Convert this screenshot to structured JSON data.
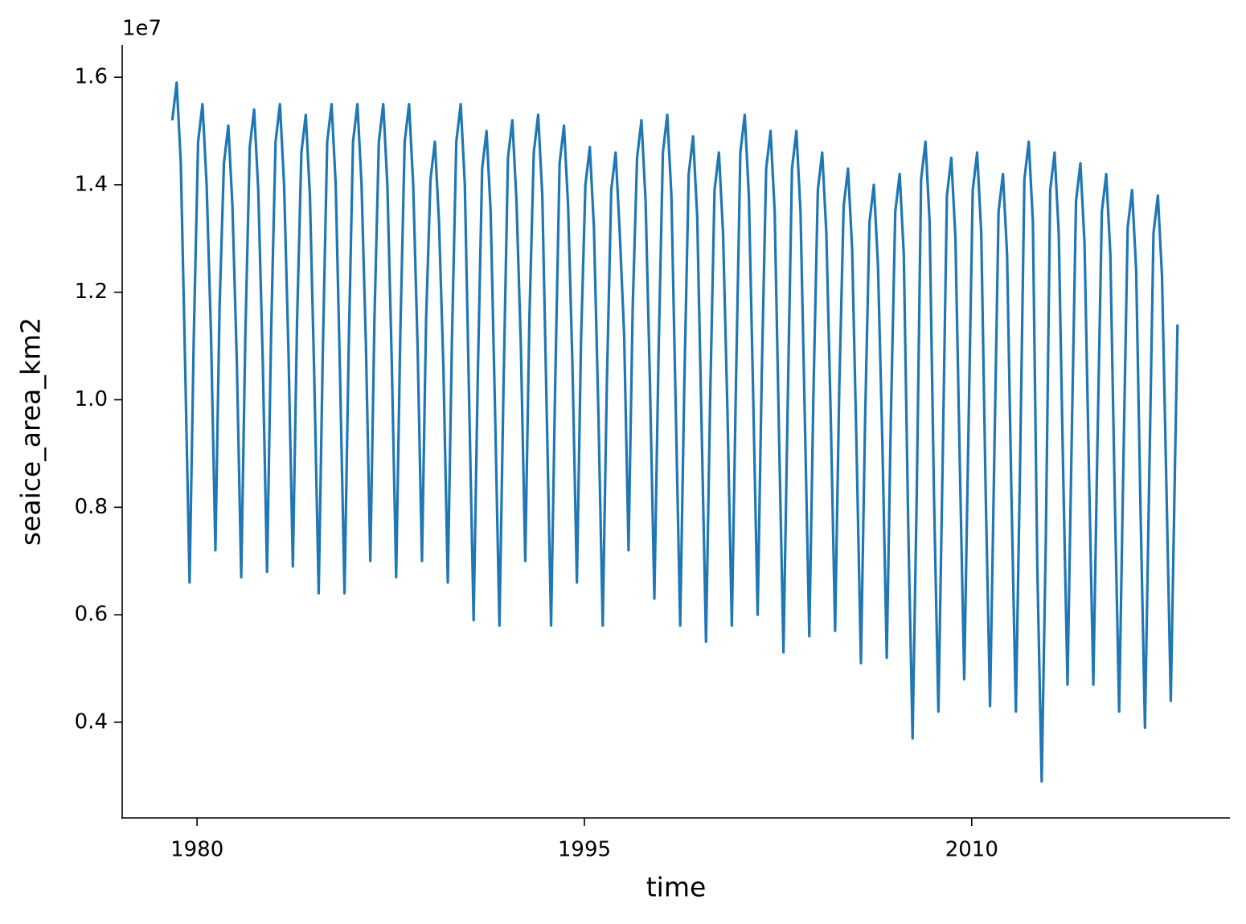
{
  "chart_data": {
    "type": "line",
    "x_label": "time",
    "y_label": "seaice_area_km2",
    "y_offset_label": "1e7",
    "color": "#1f77b4",
    "x": [
      1979.04,
      1979.21,
      1979.37,
      1979.54,
      1979.71,
      1979.87,
      1980.04,
      1980.21,
      1980.37,
      1980.54,
      1980.71,
      1980.87,
      1981.04,
      1981.21,
      1981.37,
      1981.54,
      1981.71,
      1981.87,
      1982.04,
      1982.21,
      1982.37,
      1982.54,
      1982.71,
      1982.87,
      1983.04,
      1983.21,
      1983.37,
      1983.54,
      1983.71,
      1983.87,
      1984.04,
      1984.21,
      1984.37,
      1984.54,
      1984.71,
      1984.87,
      1985.04,
      1985.21,
      1985.37,
      1985.54,
      1985.71,
      1985.87,
      1986.04,
      1986.21,
      1986.37,
      1986.54,
      1986.71,
      1986.87,
      1987.04,
      1987.21,
      1987.37,
      1987.54,
      1987.71,
      1987.87,
      1988.04,
      1988.21,
      1988.37,
      1988.54,
      1988.71,
      1988.87,
      1989.04,
      1989.21,
      1989.37,
      1989.54,
      1989.71,
      1989.87,
      1990.04,
      1990.21,
      1990.37,
      1990.54,
      1990.71,
      1990.87,
      1991.04,
      1991.21,
      1991.37,
      1991.54,
      1991.71,
      1991.87,
      1992.04,
      1992.21,
      1992.37,
      1992.54,
      1992.71,
      1992.87,
      1993.04,
      1993.21,
      1993.37,
      1993.54,
      1993.71,
      1993.87,
      1994.04,
      1994.21,
      1994.37,
      1994.54,
      1994.71,
      1994.87,
      1995.04,
      1995.21,
      1995.37,
      1995.54,
      1995.71,
      1995.87,
      1996.04,
      1996.21,
      1996.37,
      1996.54,
      1996.71,
      1996.87,
      1997.04,
      1997.21,
      1997.37,
      1997.54,
      1997.71,
      1997.87,
      1998.04,
      1998.21,
      1998.37,
      1998.54,
      1998.71,
      1998.87,
      1999.04,
      1999.21,
      1999.37,
      1999.54,
      1999.71,
      1999.87,
      2000.04,
      2000.21,
      2000.37,
      2000.54,
      2000.71,
      2000.87,
      2001.04,
      2001.21,
      2001.37,
      2001.54,
      2001.71,
      2001.87,
      2002.04,
      2002.21,
      2002.37,
      2002.54,
      2002.71,
      2002.87,
      2003.04,
      2003.21,
      2003.37,
      2003.54,
      2003.71,
      2003.87,
      2004.04,
      2004.21,
      2004.37,
      2004.54,
      2004.71,
      2004.87,
      2005.04,
      2005.21,
      2005.37,
      2005.54,
      2005.71,
      2005.87,
      2006.04,
      2006.21,
      2006.37,
      2006.54,
      2006.71,
      2006.87,
      2007.04,
      2007.21,
      2007.37,
      2007.54,
      2007.71,
      2007.87,
      2008.04,
      2008.21,
      2008.37,
      2008.54,
      2008.71,
      2008.87,
      2009.04,
      2009.21,
      2009.37,
      2009.54,
      2009.71,
      2009.87,
      2010.04,
      2010.21,
      2010.37,
      2010.54,
      2010.71,
      2010.87,
      2011.04,
      2011.21,
      2011.37,
      2011.54,
      2011.71,
      2011.87,
      2012.04,
      2012.21,
      2012.37,
      2012.54,
      2012.71,
      2012.87,
      2013.04,
      2013.21,
      2013.37,
      2013.54,
      2013.71,
      2013.87,
      2014.04,
      2014.21,
      2014.37,
      2014.54,
      2014.71,
      2014.87,
      2015.04,
      2015.21,
      2015.37,
      2015.54,
      2015.71,
      2015.87,
      2016.04,
      2016.21,
      2016.37,
      2016.54,
      2016.71,
      2016.87,
      2017.04,
      2017.21,
      2017.37,
      2017.54,
      2017.71,
      2017.97
    ],
    "values": [
      1.52,
      1.59,
      1.44,
      1.06,
      0.66,
      1.11,
      1.48,
      1.55,
      1.4,
      1.12,
      0.72,
      1.17,
      1.44,
      1.51,
      1.36,
      1.07,
      0.67,
      1.12,
      1.47,
      1.54,
      1.39,
      1.08,
      0.68,
      1.13,
      1.48,
      1.55,
      1.4,
      1.09,
      0.69,
      1.14,
      1.46,
      1.53,
      1.38,
      1.04,
      0.64,
      1.09,
      1.48,
      1.55,
      1.4,
      1.04,
      0.64,
      1.09,
      1.48,
      1.55,
      1.4,
      1.1,
      0.7,
      1.15,
      1.48,
      1.55,
      1.4,
      1.07,
      0.67,
      1.12,
      1.48,
      1.55,
      1.4,
      1.1,
      0.7,
      1.15,
      1.41,
      1.48,
      1.33,
      1.06,
      0.66,
      1.11,
      1.48,
      1.55,
      1.4,
      0.99,
      0.59,
      1.04,
      1.43,
      1.5,
      1.35,
      0.98,
      0.58,
      1.03,
      1.45,
      1.52,
      1.37,
      1.1,
      0.7,
      1.15,
      1.46,
      1.53,
      1.38,
      0.98,
      0.58,
      1.03,
      1.44,
      1.51,
      1.36,
      1.06,
      0.66,
      1.11,
      1.4,
      1.47,
      1.32,
      0.98,
      0.58,
      1.03,
      1.39,
      1.46,
      1.31,
      1.12,
      0.72,
      1.17,
      1.45,
      1.52,
      1.37,
      1.03,
      0.63,
      1.08,
      1.46,
      1.53,
      1.38,
      0.98,
      0.58,
      1.03,
      1.42,
      1.49,
      1.34,
      0.95,
      0.55,
      1.0,
      1.39,
      1.46,
      1.31,
      0.98,
      0.58,
      1.03,
      1.46,
      1.53,
      1.38,
      1.0,
      0.6,
      1.05,
      1.43,
      1.5,
      1.35,
      0.93,
      0.53,
      0.98,
      1.43,
      1.5,
      1.35,
      0.96,
      0.56,
      1.01,
      1.39,
      1.46,
      1.31,
      0.97,
      0.57,
      1.02,
      1.36,
      1.43,
      1.28,
      0.91,
      0.51,
      0.96,
      1.33,
      1.4,
      1.25,
      0.92,
      0.52,
      0.97,
      1.35,
      1.42,
      1.27,
      0.77,
      0.37,
      0.82,
      1.41,
      1.48,
      1.33,
      0.82,
      0.42,
      0.87,
      1.38,
      1.45,
      1.3,
      0.88,
      0.48,
      0.93,
      1.39,
      1.46,
      1.31,
      0.83,
      0.43,
      0.88,
      1.35,
      1.42,
      1.27,
      0.82,
      0.42,
      0.87,
      1.41,
      1.48,
      1.33,
      0.69,
      0.29,
      0.74,
      1.39,
      1.46,
      1.31,
      0.87,
      0.47,
      0.92,
      1.37,
      1.44,
      1.29,
      0.87,
      0.47,
      0.92,
      1.35,
      1.42,
      1.27,
      0.82,
      0.42,
      0.87,
      1.32,
      1.39,
      1.24,
      0.79,
      0.39,
      0.84,
      1.31,
      1.38,
      1.23,
      0.84,
      0.44,
      1.14
    ],
    "xlim": [
      1977.1,
      2020.0
    ],
    "xticks": [
      1980,
      1995,
      2010
    ],
    "ylim": [
      0.222,
      1.66
    ],
    "yticks": [
      0.4,
      0.6,
      0.8,
      {
        "value": 1.0,
        "label": "1.0"
      },
      1.2,
      1.4,
      1.6
    ]
  }
}
